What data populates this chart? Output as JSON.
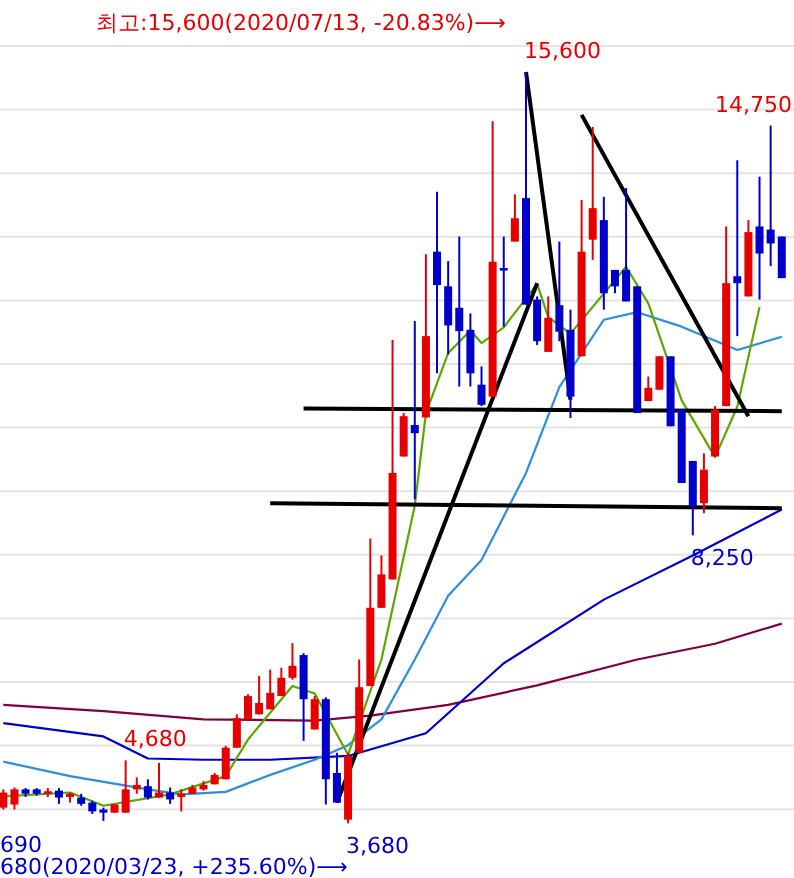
{
  "chart_data": {
    "type": "candlestick",
    "grid": "y",
    "categories": [
      null,
      null,
      null,
      null,
      null,
      null,
      null,
      null,
      null,
      null,
      null,
      null,
      null,
      null,
      null,
      null,
      null,
      null,
      null,
      null,
      null,
      null,
      null,
      null,
      null,
      null,
      null,
      null,
      null,
      null,
      null,
      null,
      null,
      null,
      null,
      null,
      null,
      null,
      null,
      null,
      null,
      null,
      null,
      null,
      null,
      null,
      null,
      null,
      null,
      null,
      null,
      null,
      null,
      null,
      null,
      null,
      null,
      null,
      null,
      null,
      null,
      null,
      null,
      null,
      null,
      null,
      null,
      null,
      null,
      null,
      null
    ],
    "ohlc": [
      [
        3930,
        4220,
        3900,
        4170
      ],
      [
        3980,
        4250,
        3900,
        4220
      ],
      [
        4220,
        4240,
        4100,
        4150
      ],
      [
        4220,
        4240,
        4120,
        4150
      ],
      [
        4150,
        4240,
        4100,
        4190
      ],
      [
        4200,
        4240,
        3990,
        4090
      ],
      [
        4100,
        4170,
        4010,
        4150
      ],
      [
        4090,
        4150,
        3960,
        3990
      ],
      [
        4010,
        4040,
        3830,
        3870
      ],
      [
        3900,
        3930,
        3720,
        3850
      ],
      [
        3850,
        3980,
        3850,
        3980
      ],
      [
        3850,
        4680,
        3850,
        4220
      ],
      [
        4220,
        4410,
        4150,
        4290
      ],
      [
        4270,
        4380,
        4060,
        4090
      ],
      [
        4090,
        4640,
        4090,
        4170
      ],
      [
        4170,
        4250,
        3990,
        4060
      ],
      [
        4100,
        4220,
        3870,
        4150
      ],
      [
        4150,
        4290,
        4150,
        4250
      ],
      [
        4220,
        4350,
        4200,
        4290
      ],
      [
        4300,
        4480,
        4300,
        4450
      ],
      [
        4380,
        4910,
        4380,
        4880
      ],
      [
        4880,
        5410,
        4880,
        5350
      ],
      [
        5330,
        5730,
        5330,
        5700
      ],
      [
        5410,
        6020,
        5410,
        5590
      ],
      [
        5490,
        6120,
        5490,
        5750
      ],
      [
        5700,
        6150,
        5700,
        5990
      ],
      [
        5990,
        6540,
        5960,
        6180
      ],
      [
        6350,
        6380,
        4990,
        5650
      ],
      [
        5170,
        5700,
        5170,
        5650
      ],
      [
        5650,
        5680,
        3980,
        4380
      ],
      [
        4480,
        4800,
        4010,
        4010
      ],
      [
        3740,
        4800,
        3680,
        4750
      ],
      [
        4800,
        6280,
        4800,
        5840
      ],
      [
        5860,
        8200,
        5860,
        7100
      ],
      [
        7100,
        7930,
        7100,
        7630
      ],
      [
        7550,
        11350,
        7550,
        9240
      ],
      [
        9500,
        10190,
        9500,
        10140
      ],
      [
        10000,
        11650,
        8820,
        9870
      ],
      [
        10120,
        12710,
        10120,
        11410
      ],
      [
        12750,
        13700,
        10820,
        12220
      ],
      [
        12200,
        12600,
        11120,
        11580
      ],
      [
        11860,
        12990,
        10610,
        11490
      ],
      [
        11510,
        11770,
        10610,
        10820
      ],
      [
        10640,
        10930,
        10300,
        10320
      ],
      [
        10450,
        14820,
        10450,
        12590
      ],
      [
        12490,
        12990,
        11560,
        12450
      ],
      [
        12910,
        13660,
        12910,
        13280
      ],
      [
        13600,
        15600,
        11910,
        11910
      ],
      [
        11990,
        12040,
        11270,
        11330
      ],
      [
        11160,
        12040,
        11160,
        11700
      ],
      [
        11900,
        12910,
        11330,
        11480
      ],
      [
        11510,
        11830,
        10110,
        10450
      ],
      [
        11090,
        13570,
        11090,
        12750
      ],
      [
        12940,
        14730,
        12620,
        13440
      ],
      [
        13250,
        13620,
        11830,
        12090
      ],
      [
        12460,
        12460,
        12090,
        12200
      ],
      [
        12460,
        13760,
        11960,
        11960
      ],
      [
        12200,
        12200,
        10190,
        10190
      ],
      [
        10380,
        10770,
        10380,
        10590
      ],
      [
        10560,
        11090,
        10560,
        11090
      ],
      [
        11090,
        11090,
        9980,
        9980
      ],
      [
        10240,
        10240,
        9080,
        9080
      ],
      [
        9430,
        9430,
        8250,
        8710
      ],
      [
        8760,
        9550,
        8600,
        9290
      ],
      [
        9500,
        10300,
        9500,
        10240
      ],
      [
        10300,
        13150,
        10300,
        12250
      ],
      [
        12360,
        14200,
        11410,
        12250
      ],
      [
        12040,
        13250,
        12040,
        13060
      ],
      [
        13150,
        13940,
        11990,
        12720
      ],
      [
        13100,
        14750,
        12520,
        12880
      ],
      [
        12990,
        12990,
        12330,
        12330
      ]
    ],
    "colors": [
      "#e60000",
      "#e60000",
      "#0000cc",
      "#0000cc",
      "#e60000",
      "#0000cc",
      "#e60000",
      "#0000cc",
      "#0000cc",
      "#0000cc",
      "#e60000",
      "#e60000",
      "#e60000",
      "#0000cc",
      "#e60000",
      "#0000cc",
      "#e60000",
      "#e60000",
      "#e60000",
      "#e60000",
      "#e60000",
      "#e60000",
      "#e60000",
      "#e60000",
      "#e60000",
      "#e60000",
      "#e60000",
      "#0000cc",
      "#e60000",
      "#0000cc",
      "#0000cc",
      "#e60000",
      "#e60000",
      "#e60000",
      "#e60000",
      "#e60000",
      "#e60000",
      "#0000cc",
      "#e60000",
      "#0000cc",
      "#0000cc",
      "#0000cc",
      "#0000cc",
      "#0000cc",
      "#e60000",
      "#0000cc",
      "#e60000",
      "#0000cc",
      "#0000cc",
      "#e60000",
      "#0000cc",
      "#0000cc",
      "#e60000",
      "#e60000",
      "#0000cc",
      "#0000cc",
      "#0000cc",
      "#0000cc",
      "#e60000",
      "#e60000",
      "#0000cc",
      "#0000cc",
      "#0000cc",
      "#e60000",
      "#e60000",
      "#e60000",
      "#0000cc",
      "#e60000",
      "#0000cc",
      "#0000cc",
      "#0000cc"
    ],
    "series": [
      {
        "type": "line",
        "color": "#800040",
        "values": [
          5560,
          null,
          null,
          null,
          null,
          null,
          null,
          null,
          null,
          5460,
          null,
          null,
          null,
          null,
          null,
          null,
          null,
          null,
          5330,
          null,
          null,
          null,
          null,
          null,
          null,
          null,
          null,
          null,
          5310,
          null,
          null,
          null,
          null,
          5390,
          null,
          null,
          null,
          null,
          null,
          null,
          5560,
          null,
          null,
          null,
          null,
          null,
          null,
          null,
          5870,
          null,
          null,
          null,
          null,
          null,
          null,
          null,
          null,
          6280,
          null,
          null,
          null,
          null,
          null,
          null,
          6530,
          null,
          null,
          null,
          null,
          null,
          6850
        ]
      },
      {
        "type": "line",
        "color": "#0000cc",
        "values": [
          5270,
          null,
          null,
          null,
          null,
          null,
          null,
          null,
          null,
          5060,
          null,
          null,
          null,
          4710,
          null,
          null,
          null,
          null,
          4690,
          null,
          null,
          null,
          null,
          null,
          4690,
          null,
          null,
          null,
          null,
          null,
          null,
          4750,
          null,
          null,
          null,
          null,
          null,
          null,
          5110,
          null,
          null,
          null,
          null,
          null,
          null,
          6220,
          null,
          null,
          null,
          null,
          null,
          null,
          null,
          null,
          7230,
          null,
          null,
          null,
          null,
          null,
          null,
          null,
          7930,
          null,
          null,
          null,
          null,
          null,
          null,
          null,
          8660
        ]
      },
      {
        "type": "line",
        "color": "#2b8fdc",
        "values": [
          4660,
          null,
          null,
          null,
          null,
          null,
          4430,
          null,
          null,
          null,
          null,
          null,
          null,
          4220,
          null,
          null,
          4140,
          null,
          null,
          null,
          4180,
          null,
          null,
          null,
          4450,
          null,
          null,
          null,
          4690,
          null,
          null,
          4920,
          null,
          null,
          5330,
          null,
          null,
          6280,
          null,
          null,
          7290,
          null,
          null,
          7860,
          null,
          null,
          null,
          9240,
          null,
          null,
          10600,
          null,
          null,
          null,
          11670,
          null,
          null,
          11790,
          null,
          null,
          null,
          11560,
          null,
          null,
          null,
          null,
          11190,
          null,
          null,
          null,
          11400
        ]
      },
      {
        "type": "line",
        "color": "#5aa800",
        "values": [
          4110,
          null,
          null,
          null,
          null,
          null,
          4170,
          null,
          null,
          3960,
          null,
          null,
          null,
          null,
          null,
          4140,
          null,
          null,
          null,
          null,
          4430,
          null,
          5010,
          null,
          null,
          null,
          5860,
          null,
          5740,
          null,
          null,
          4770,
          null,
          null,
          6280,
          null,
          null,
          8720,
          10190,
          null,
          11140,
          null,
          11500,
          11300,
          null,
          11550,
          null,
          null,
          12240,
          11710,
          null,
          11450,
          null,
          null,
          null,
          null,
          12510,
          null,
          11930,
          null,
          null,
          10390,
          null,
          null,
          9490,
          null,
          10290,
          null,
          11870,
          null,
          null
        ]
      },
      {
        "type": "line",
        "color": "#000000",
        "values": [
          null,
          null,
          null,
          null,
          null,
          null,
          null,
          null,
          null,
          null,
          null,
          null,
          null,
          null,
          null,
          null,
          null,
          null,
          null,
          null,
          null,
          null,
          null,
          null,
          null,
          null,
          null,
          null,
          null,
          null,
          4010,
          null,
          null,
          null,
          null,
          null,
          null,
          null,
          null,
          null,
          null,
          null,
          null,
          null,
          null,
          null,
          null,
          null,
          12250,
          null,
          null,
          null,
          null,
          null,
          null,
          null,
          null,
          null,
          null,
          null,
          null,
          null,
          null,
          null,
          null,
          null,
          null,
          null,
          null,
          null,
          null
        ]
      },
      {
        "type": "line",
        "color": "#000000",
        "values": [
          null,
          null,
          null,
          null,
          null,
          null,
          null,
          null,
          null,
          null,
          null,
          null,
          null,
          null,
          null,
          null,
          null,
          null,
          null,
          null,
          null,
          null,
          null,
          null,
          null,
          null,
          null,
          null,
          null,
          null,
          null,
          null,
          null,
          null,
          null,
          null,
          null,
          null,
          null,
          null,
          null,
          null,
          null,
          null,
          null,
          null,
          null,
          15600,
          null,
          null,
          null,
          10400,
          null,
          null,
          null,
          null,
          null,
          null,
          null,
          null,
          null,
          null,
          null,
          null,
          null,
          null,
          null,
          null,
          null,
          null,
          null
        ]
      },
      {
        "type": "line",
        "color": "#000000",
        "values": [
          null,
          null,
          null,
          null,
          null,
          null,
          null,
          null,
          null,
          null,
          null,
          null,
          null,
          null,
          null,
          null,
          null,
          null,
          null,
          null,
          null,
          null,
          null,
          null,
          null,
          null,
          null,
          null,
          null,
          null,
          null,
          null,
          null,
          null,
          null,
          null,
          null,
          null,
          null,
          null,
          null,
          null,
          null,
          null,
          null,
          null,
          null,
          null,
          null,
          null,
          null,
          null,
          14920,
          null,
          null,
          null,
          null,
          null,
          null,
          null,
          null,
          null,
          null,
          null,
          null,
          null,
          null,
          10140,
          null,
          null,
          null
        ]
      },
      {
        "type": "line",
        "color": "#000000",
        "values": [
          null,
          null,
          null,
          null,
          null,
          null,
          null,
          null,
          null,
          null,
          null,
          null,
          null,
          null,
          null,
          null,
          null,
          null,
          null,
          null,
          null,
          null,
          null,
          null,
          null,
          null,
          null,
          10260,
          null,
          null,
          null,
          null,
          null,
          null,
          null,
          null,
          null,
          null,
          null,
          null,
          null,
          null,
          null,
          null,
          null,
          null,
          null,
          null,
          null,
          null,
          null,
          null,
          null,
          null,
          null,
          null,
          null,
          null,
          null,
          null,
          null,
          null,
          null,
          null,
          null,
          null,
          null,
          null,
          null,
          null,
          10220
        ]
      },
      {
        "type": "line",
        "color": "#000000",
        "values": [
          null,
          null,
          null,
          null,
          null,
          null,
          null,
          null,
          null,
          null,
          null,
          null,
          null,
          null,
          null,
          null,
          null,
          null,
          null,
          null,
          null,
          null,
          null,
          null,
          8760,
          null,
          null,
          null,
          null,
          null,
          null,
          null,
          null,
          null,
          null,
          null,
          null,
          null,
          null,
          null,
          null,
          null,
          null,
          null,
          null,
          null,
          null,
          null,
          null,
          null,
          null,
          null,
          null,
          null,
          null,
          null,
          null,
          null,
          null,
          null,
          null,
          null,
          null,
          null,
          null,
          null,
          null,
          null,
          null,
          null,
          8680
        ]
      }
    ],
    "annotations": [
      "최고:15,600(2020/07/13, -20.83%)⟶",
      "15,600",
      "14,750",
      "4,680",
      "8,250",
      "3,680",
      "690",
      "680(2020/03/23, +235.60%)⟶"
    ]
  }
}
